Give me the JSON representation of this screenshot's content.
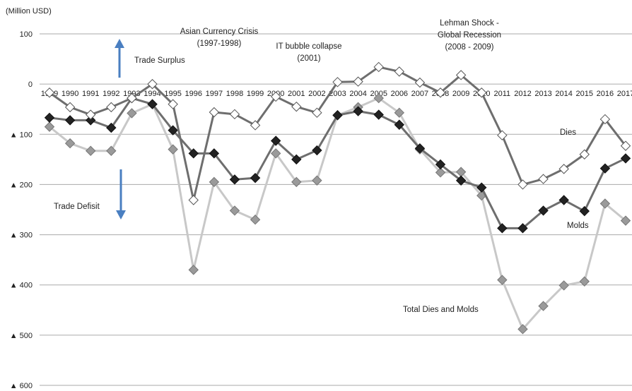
{
  "chart_data": {
    "type": "line",
    "unit_label": "(Million USD)",
    "categories": [
      "1989",
      "1990",
      "1991",
      "1992",
      "1993",
      "1994",
      "1995",
      "1996",
      "1997",
      "1998",
      "1999",
      "2000",
      "2001",
      "2002",
      "2003",
      "2004",
      "2005",
      "2006",
      "2007",
      "2008",
      "2009",
      "2010",
      "2011",
      "2012",
      "2013",
      "2014",
      "2015",
      "2016",
      "2017"
    ],
    "x_tick_labels": [
      "1989",
      "1990",
      "1991",
      "1992",
      "1993",
      "1994",
      "1995",
      "1996",
      "1997",
      "1998",
      "1999",
      "2000",
      "2001",
      "2002",
      "2003",
      "2004",
      "2005",
      "2006",
      "2007",
      "2008",
      "2009",
      "2010",
      "2011",
      "2012",
      "2013",
      "2014",
      "2015",
      "2016",
      "2017"
    ],
    "y_ticks": [
      {
        "value": 100,
        "label": "100"
      },
      {
        "value": 0,
        "label": "0"
      },
      {
        "value": -100,
        "label": "▲ 100"
      },
      {
        "value": -200,
        "label": "▲ 200"
      },
      {
        "value": -300,
        "label": "▲ 300"
      },
      {
        "value": -400,
        "label": "▲ 400"
      },
      {
        "value": -500,
        "label": "▲ 500"
      },
      {
        "value": -600,
        "label": "▲ 600"
      }
    ],
    "ylim": [
      -600,
      100
    ],
    "grid": true,
    "series": [
      {
        "name": "Total Dies and Molds",
        "line_color": "#c8c8c8",
        "marker": "diamond",
        "marker_fill": "#9a9a9a",
        "marker_stroke": "#777777",
        "values": [
          -85,
          -118,
          -133,
          -133,
          -58,
          -40,
          -130,
          -370,
          -195,
          -252,
          -270,
          -138,
          -195,
          -192,
          -62,
          -46,
          -28,
          -57,
          -130,
          -176,
          -175,
          -222,
          -390,
          -488,
          -442,
          -401,
          -393,
          -238,
          -272
        ]
      },
      {
        "name": "Molds",
        "line_color": "#6e6e6e",
        "marker": "diamond",
        "marker_fill": "#222222",
        "marker_stroke": "#111111",
        "values": [
          -67,
          -72,
          -72,
          -87,
          -28,
          -40,
          -92,
          -138,
          -138,
          -190,
          -187,
          -113,
          -150,
          -132,
          -62,
          -54,
          -61,
          -81,
          -128,
          -160,
          -192,
          -206,
          -287,
          -287,
          -252,
          -231,
          -253,
          -168,
          -148
        ]
      },
      {
        "name": "Dies",
        "line_color": "#6e6e6e",
        "marker": "diamond",
        "marker_fill": "#ffffff",
        "marker_stroke": "#555555",
        "values": [
          -17,
          -46,
          -61,
          -46,
          -28,
          0,
          -40,
          -231,
          -56,
          -60,
          -82,
          -25,
          -45,
          -57,
          4,
          5,
          34,
          25,
          3,
          -17,
          18,
          -17,
          -102,
          -200,
          -189,
          -169,
          -140,
          -70,
          -123
        ]
      }
    ],
    "series_labels": {
      "dies": "Dies",
      "molds": "Molds",
      "total": "Total Dies and Molds"
    },
    "annotations": {
      "asian_crisis_line1": "Asian Currency Crisis",
      "asian_crisis_line2": "(1997-1998)",
      "it_bubble_line1": "IT bubble collapse",
      "it_bubble_line2": "(2001)",
      "lehman_line1": "Lehman Shock  -",
      "lehman_line2": "Global Recession",
      "lehman_line3": "(2008 - 2009)",
      "trade_surplus": "Trade Surplus",
      "trade_defisit": "Trade Defisit"
    },
    "arrow_color": "#4a7fc1"
  }
}
